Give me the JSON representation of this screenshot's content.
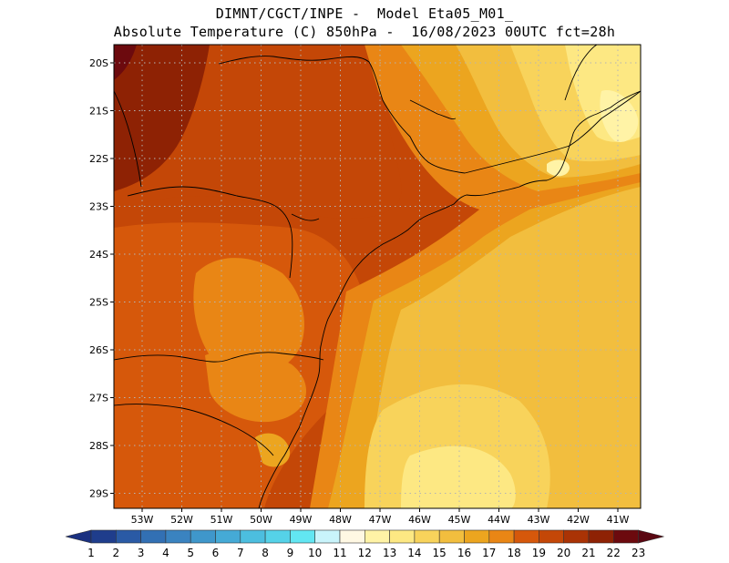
{
  "title_line1": "DIMNT/CGCT/INPE -  Model Eta05_M01_",
  "title_line2": "Absolute Temperature (C) 850hPa -  16/08/2023 00UTC fct=28h",
  "lat_labels": [
    "20S",
    "21S",
    "22S",
    "23S",
    "24S",
    "25S",
    "26S",
    "27S",
    "28S",
    "29S"
  ],
  "lon_labels": [
    "53W",
    "52W",
    "51W",
    "50W",
    "49W",
    "48W",
    "47W",
    "46W",
    "45W",
    "44W",
    "43W",
    "42W",
    "41W"
  ],
  "colorbar": {
    "labels": [
      "1",
      "2",
      "3",
      "4",
      "5",
      "6",
      "7",
      "8",
      "9",
      "10",
      "11",
      "12",
      "13",
      "14",
      "15",
      "16",
      "17",
      "18",
      "19",
      "20",
      "21",
      "22",
      "23"
    ],
    "colors": [
      "#1f3d8c",
      "#2a5aa5",
      "#3270b4",
      "#3a83c0",
      "#3f97cb",
      "#45aad6",
      "#4cbedf",
      "#55d2e8",
      "#62e6f2",
      "#c9f4fb",
      "#fff8e3",
      "#fff3a6",
      "#fde883",
      "#f8d35b",
      "#f2be3e",
      "#eca51f",
      "#e98615",
      "#d6580b",
      "#c44707",
      "#aa3305",
      "#8e2204",
      "#6c0a0e"
    ],
    "left_arrow_color": "#1a3080",
    "right_arrow_color": "#5a0712"
  },
  "map_colors": {
    "t22": "#8e2204",
    "t20": "#c44707",
    "t19": "#d6580b",
    "t18": "#e98615",
    "t17": "#eca51f",
    "t16": "#f2be3e",
    "t15": "#f8d35b",
    "t14": "#fde883",
    "t13": "#fff3a6",
    "coast": "#000000",
    "grid": "#b4b4b4"
  }
}
